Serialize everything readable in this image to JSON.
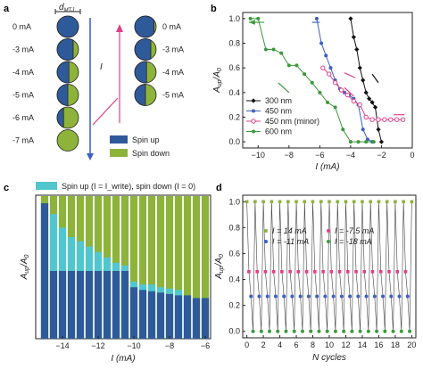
{
  "panels": {
    "a": "a",
    "b": "b",
    "c": "c",
    "d": "d"
  },
  "colors": {
    "spin_up": "#2f5a9a",
    "spin_down": "#8db33a",
    "cyan": "#52c6cf",
    "black": "#111111",
    "blue": "#3c5fc0",
    "pink": "#e0408a",
    "green": "#3a9a3a"
  },
  "panel_a": {
    "dmtj_label": "d",
    "dmtj_sub": "MTJ",
    "current_label": "I",
    "left_labels": [
      "0 mA",
      "-3 mA",
      "-4 mA",
      "-5 mA",
      "-6 mA",
      "-7 mA"
    ],
    "left_up_fraction": [
      1.0,
      0.75,
      0.55,
      0.5,
      0.3,
      0.0
    ],
    "right_labels": [
      "0 mA",
      "-3 mA",
      "-4 mA",
      "-5 mA"
    ],
    "right_up_fraction": [
      0.9,
      0.75,
      0.55,
      0.5
    ],
    "legend": [
      "Spin up",
      "Spin down"
    ]
  },
  "chart_data": [
    {
      "id": "b",
      "type": "line",
      "xlabel": "I (mA)",
      "ylabel": "A_up/A_0",
      "xlim": [
        -11,
        0
      ],
      "ylim": [
        -0.05,
        1.05
      ],
      "xticks": [
        -10,
        -8,
        -6,
        -4,
        -2,
        0
      ],
      "yticks": [
        0.0,
        0.2,
        0.4,
        0.6,
        0.8,
        1.0
      ],
      "legend_position": "bottom-left",
      "series": [
        {
          "name": "300 nm",
          "color": "#111111",
          "marker": "diamond",
          "x": [
            -4.0,
            -3.8,
            -3.6,
            -3.4,
            -3.2,
            -3.0,
            -2.8,
            -2.6,
            -2.4,
            -2.2,
            -2.0
          ],
          "y": [
            1.0,
            0.85,
            0.75,
            0.6,
            0.5,
            0.4,
            0.35,
            0.32,
            0.28,
            0.1,
            0.0
          ]
        },
        {
          "name": "450 nm",
          "color": "#3c5fc0",
          "marker": "circle",
          "x": [
            -6.2,
            -5.9,
            -5.6,
            -5.3,
            -5.0,
            -4.7,
            -4.4,
            -4.1,
            -3.8,
            -3.5,
            -3.2,
            -2.9,
            -2.6
          ],
          "y": [
            1.0,
            0.8,
            0.7,
            0.6,
            0.5,
            0.43,
            0.4,
            0.38,
            0.35,
            0.3,
            0.1,
            0.02,
            0.0
          ]
        },
        {
          "name": "450 nm (minor)",
          "color": "#e0408a",
          "marker": "open-circle",
          "x": [
            -5.8,
            -5.4,
            -5.0,
            -4.6,
            -4.2,
            -3.8,
            -3.4,
            -3.0,
            -2.6,
            -2.2,
            -1.8,
            -1.4,
            -1.0,
            -0.6
          ],
          "y": [
            0.6,
            0.55,
            0.48,
            0.42,
            0.38,
            0.33,
            0.3,
            0.2,
            0.18,
            0.18,
            0.18,
            0.18,
            0.18,
            0.18
          ]
        },
        {
          "name": "600 nm",
          "color": "#3a9a3a",
          "marker": "circle",
          "x": [
            -10.5,
            -10.0,
            -9.5,
            -9.0,
            -8.5,
            -8.0,
            -7.5,
            -7.0,
            -6.5,
            -6.0,
            -5.5,
            -5.0,
            -4.5,
            -4.0,
            -3.5,
            -3.0,
            -2.5
          ],
          "y": [
            1.0,
            1.0,
            0.75,
            0.75,
            0.72,
            0.62,
            0.62,
            0.55,
            0.48,
            0.4,
            0.32,
            0.28,
            0.1,
            0.0,
            0.0,
            0.0,
            0.0
          ]
        }
      ]
    },
    {
      "id": "c",
      "type": "bar",
      "xlabel": "I (mA)",
      "ylabel": "A_up/A_0",
      "legend": "Spin up (I = I_write), spin down (I = 0)",
      "xticks": [
        -14,
        -12,
        -10,
        -8,
        -6
      ],
      "xlim": [
        -15.5,
        -5.7
      ],
      "x": [
        -15,
        -14.5,
        -14,
        -13.5,
        -13,
        -12.5,
        -12,
        -11.5,
        -11,
        -10.5,
        -10,
        -9.5,
        -9,
        -8.5,
        -8,
        -7.5,
        -7,
        -6.5,
        -6
      ],
      "spin_up_blue": [
        1.0,
        0.5,
        0.5,
        0.5,
        0.5,
        0.5,
        0.5,
        0.5,
        0.5,
        0.5,
        0.38,
        0.36,
        0.35,
        0.34,
        0.33,
        0.32,
        0.32,
        0.3,
        0.3
      ],
      "spin_up_total": [
        1.0,
        0.92,
        0.82,
        0.75,
        0.72,
        0.68,
        0.64,
        0.6,
        0.56,
        0.54,
        0.42,
        0.4,
        0.4,
        0.38,
        0.37,
        0.36,
        0.32,
        0.3,
        0.3
      ]
    },
    {
      "id": "d",
      "type": "line",
      "xlabel": "N cycles",
      "ylabel": "A_up/A_0",
      "xlim": [
        -0.5,
        20.5
      ],
      "ylim": [
        -0.05,
        1.05
      ],
      "xticks": [
        0,
        2,
        4,
        6,
        8,
        10,
        12,
        14,
        16,
        18,
        20
      ],
      "yticks": [
        0.0,
        0.2,
        0.4,
        0.6,
        0.8,
        1.0
      ],
      "cycles": 20,
      "series": [
        {
          "name": "I = 14 mA",
          "color": "#8db33a",
          "marker": "square",
          "value": 1.0
        },
        {
          "name": "I = -7.5 mA",
          "color": "#e0408a",
          "marker": "square",
          "value": 0.46
        },
        {
          "name": "I = -11 mA",
          "color": "#3c5fc0",
          "marker": "circle",
          "value": 0.27
        },
        {
          "name": "I = -18 mA",
          "color": "#3a9a3a",
          "marker": "circle",
          "value": 0.0
        }
      ]
    }
  ]
}
